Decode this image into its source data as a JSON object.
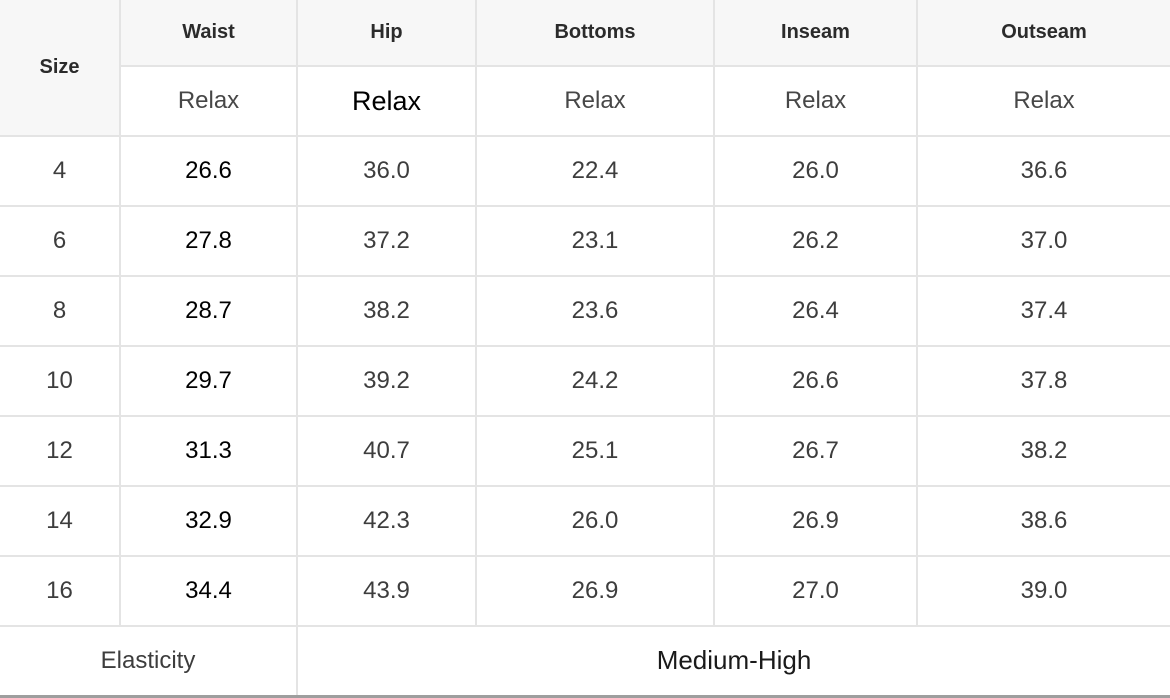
{
  "colors": {
    "header_bg": "#f7f7f7",
    "cell_border": "#e4e4e4",
    "bottom_border": "#9e9e9e",
    "text": "#3d3d3d",
    "text_emphasis": "#000000"
  },
  "table": {
    "corner_label": "Size",
    "columns": [
      {
        "label": "Waist",
        "sub": "Relax"
      },
      {
        "label": "Hip",
        "sub": "Relax"
      },
      {
        "label": "Bottoms",
        "sub": "Relax"
      },
      {
        "label": "Inseam",
        "sub": "Relax"
      },
      {
        "label": "Outseam",
        "sub": "Relax"
      }
    ],
    "rows": [
      {
        "size": "4",
        "values": [
          "26.6",
          "36.0",
          "22.4",
          "26.0",
          "36.6"
        ]
      },
      {
        "size": "6",
        "values": [
          "27.8",
          "37.2",
          "23.1",
          "26.2",
          "37.0"
        ]
      },
      {
        "size": "8",
        "values": [
          "28.7",
          "38.2",
          "23.6",
          "26.4",
          "37.4"
        ]
      },
      {
        "size": "10",
        "values": [
          "29.7",
          "39.2",
          "24.2",
          "26.6",
          "37.8"
        ]
      },
      {
        "size": "12",
        "values": [
          "31.3",
          "40.7",
          "25.1",
          "26.7",
          "38.2"
        ]
      },
      {
        "size": "14",
        "values": [
          "32.9",
          "42.3",
          "26.0",
          "26.9",
          "38.6"
        ]
      },
      {
        "size": "16",
        "values": [
          "34.4",
          "43.9",
          "26.9",
          "27.0",
          "39.0"
        ]
      }
    ],
    "footer": {
      "label": "Elasticity",
      "value": "Medium-High"
    }
  }
}
